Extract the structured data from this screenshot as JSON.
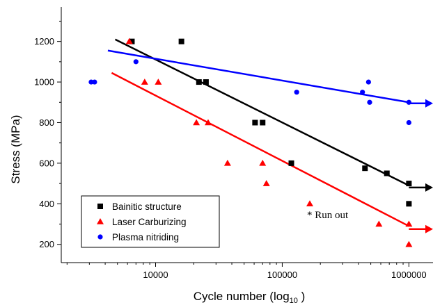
{
  "chart_data": {
    "type": "scatter",
    "title": "",
    "xlabel": "Cycle number (log",
    "xlabel_sub": "10",
    "xlabel_suffix": " )",
    "ylabel": "Stress (MPa)",
    "x_scale": "log",
    "xlim": [
      1800,
      1550000
    ],
    "ylim": [
      110,
      1370
    ],
    "x_ticks": [
      10000,
      100000,
      1000000
    ],
    "x_tick_labels": [
      "10000",
      "100000",
      "1000000"
    ],
    "y_ticks": [
      200,
      400,
      600,
      800,
      1000,
      1200
    ],
    "y_tick_labels": [
      "200",
      "400",
      "600",
      "800",
      "1000",
      "1200"
    ],
    "grid": false,
    "legend_position": "bottom-left",
    "annotation": "* Run out",
    "series": [
      {
        "name": "Bainitic structure",
        "marker": "square",
        "color": "#000000",
        "points": [
          [
            6500,
            1200
          ],
          [
            16000,
            1200
          ],
          [
            22000,
            1000
          ],
          [
            25000,
            1000
          ],
          [
            61000,
            800
          ],
          [
            70000,
            800
          ],
          [
            118000,
            600
          ],
          [
            450000,
            575
          ],
          [
            670000,
            550
          ],
          [
            1000000,
            500
          ],
          [
            1000000,
            400
          ]
        ],
        "fit": [
          [
            4800,
            1210
          ],
          [
            1000000,
            490
          ]
        ],
        "runout": {
          "from": [
            1000000,
            480
          ],
          "to": [
            1550000,
            480
          ],
          "star": [
            1200000,
            505
          ]
        }
      },
      {
        "name": "Laser Carburizing",
        "marker": "triangle",
        "color": "#ff0000",
        "points": [
          [
            6200,
            1200
          ],
          [
            8200,
            1000
          ],
          [
            10500,
            1000
          ],
          [
            21000,
            800
          ],
          [
            26000,
            800
          ],
          [
            37000,
            600
          ],
          [
            70000,
            600
          ],
          [
            75000,
            500
          ],
          [
            165000,
            400
          ],
          [
            580000,
            300
          ],
          [
            1000000,
            300
          ],
          [
            1000000,
            200
          ]
        ],
        "fit": [
          [
            4500,
            1045
          ],
          [
            1000000,
            290
          ]
        ],
        "runout": {
          "from": [
            1000000,
            275
          ],
          "to": [
            1550000,
            275
          ],
          "star": [
            1200000,
            300
          ]
        }
      },
      {
        "name": "Plasma nitriding",
        "marker": "circle",
        "color": "#0000ff",
        "points": [
          [
            3100,
            1000
          ],
          [
            3300,
            1000
          ],
          [
            7000,
            1100
          ],
          [
            130000,
            950
          ],
          [
            430000,
            950
          ],
          [
            480000,
            1000
          ],
          [
            490000,
            900
          ],
          [
            1000000,
            900
          ],
          [
            1000000,
            800
          ]
        ],
        "fit": [
          [
            4200,
            1155
          ],
          [
            1000000,
            900
          ]
        ],
        "runout": {
          "from": [
            1000000,
            895
          ],
          "to": [
            1550000,
            895
          ],
          "star": [
            1200000,
            920
          ]
        }
      }
    ]
  }
}
